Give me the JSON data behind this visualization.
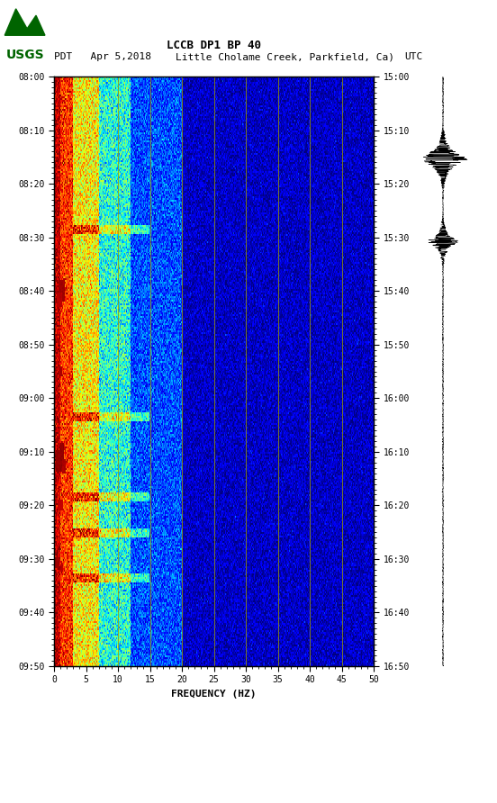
{
  "title_line1": "LCCB DP1 BP 40",
  "title_line2": "PDT   Apr 5,2018Little Cholame Creek, Parkfield, Ca)     UTC",
  "title_line2_left": "PDT   Apr 5,2018",
  "title_line2_mid": "Little Cholame Creek, Parkfield, Ca)",
  "title_line2_right": "UTC",
  "left_time_labels": [
    "08:00",
    "08:10",
    "08:20",
    "08:30",
    "08:40",
    "08:50",
    "09:00",
    "09:10",
    "09:20",
    "09:30",
    "09:40",
    "09:50"
  ],
  "right_time_labels": [
    "15:00",
    "15:10",
    "15:20",
    "15:30",
    "15:40",
    "15:50",
    "16:00",
    "16:10",
    "16:20",
    "16:30",
    "16:40",
    "16:50"
  ],
  "freq_min": 0,
  "freq_max": 50,
  "freq_ticks": [
    0,
    5,
    10,
    15,
    20,
    25,
    30,
    35,
    40,
    45,
    50
  ],
  "xlabel": "FREQUENCY (HZ)",
  "background_color": "#ffffff",
  "vline_color": "#999900",
  "vline_positions": [
    10,
    15,
    20,
    25,
    30,
    35,
    40,
    45
  ],
  "logo_color": "#006400",
  "num_time_rows": 330,
  "num_freq_cols": 500,
  "seed": 12345
}
